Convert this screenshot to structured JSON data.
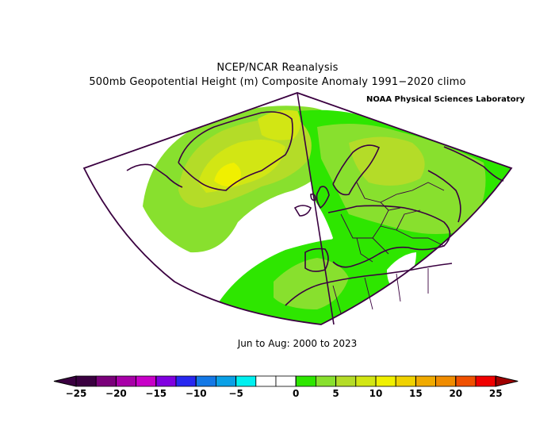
{
  "header": {
    "line1": "NCEP/NCAR Reanalysis",
    "line2": "500mb Geopotential Height (m) Composite Anomaly 1991−2020 climo",
    "lab": "NOAA Physical Sciences Laboratory"
  },
  "period": "Jun to Aug: 2000 to 2023",
  "colorbar": {
    "colors": [
      "#3a0040",
      "#7a007a",
      "#a800a8",
      "#c800c8",
      "#8000e0",
      "#2828f0",
      "#1478e6",
      "#0aa0e6",
      "#00f0f0",
      "#ffffff",
      "#ffffff",
      "#2ee600",
      "#88e02e",
      "#b4dc28",
      "#d2e614",
      "#f0f000",
      "#f0d200",
      "#f0aa00",
      "#f08c00",
      "#f05000",
      "#f00000"
    ],
    "arrow_low": "#3a0040",
    "arrow_high": "#a00000",
    "ticks": [
      "−25",
      "−20",
      "−15",
      "−10",
      "−5",
      "0",
      "5",
      "10",
      "15",
      "20",
      "25"
    ]
  },
  "map": {
    "projection": "polar conic sector",
    "fill_colors": {
      "light": "#88e02e",
      "mid": "#b4dc28",
      "high": "#d2e614",
      "peak": "#f0f000",
      "strong": "#2ee600",
      "neutral": "#ffffff",
      "coast": "#3a0040"
    }
  }
}
